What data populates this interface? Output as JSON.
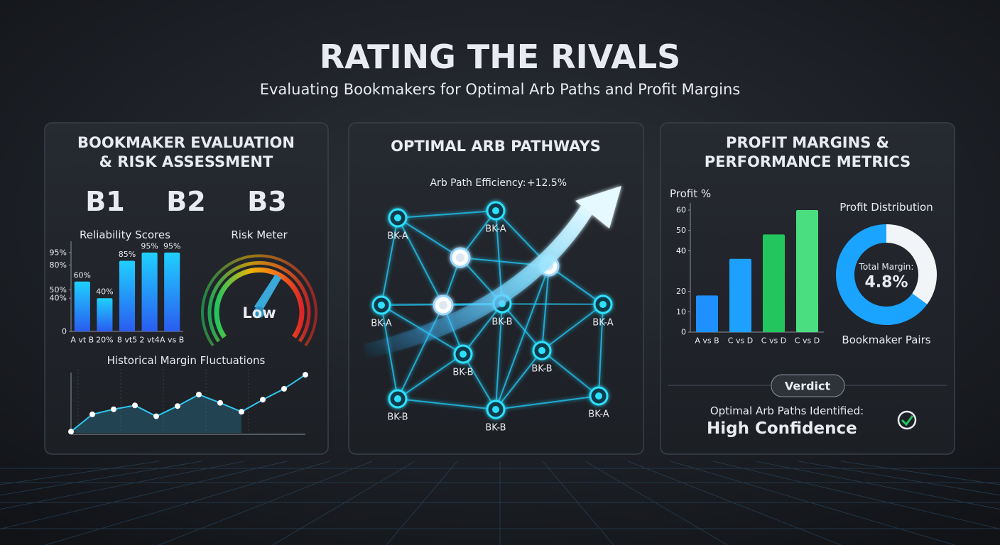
{
  "header": {
    "title": "RATING THE RIVALS",
    "subtitle": "Evaluating Bookmakers for Optimal Arb Paths and Profit Margins"
  },
  "left": {
    "title_lines": [
      "BOOKMAKER EVALUATION",
      "& RISK ASSESSMENT"
    ],
    "logos": [
      "B1",
      "B2",
      "B3"
    ],
    "reliability": {
      "type": "bar",
      "title": "Reliability Scores",
      "categories": [
        "A vt B",
        "20%",
        "8 vt5",
        "2 vt4",
        "A vs B"
      ],
      "values": [
        60,
        40,
        85,
        95,
        95
      ],
      "value_labels": [
        "60%",
        "40%",
        "85%",
        "95%",
        "95%"
      ],
      "ylim": [
        0,
        100
      ],
      "yticks": [
        {
          "value": 95,
          "label": "95%"
        },
        {
          "value": 80,
          "label": "80%"
        },
        {
          "value": 40,
          "label": "40%"
        },
        {
          "value": 50,
          "label": "50%"
        },
        0
      ]
    },
    "risk": {
      "title": "Risk Meter",
      "level": "Low"
    },
    "history": {
      "type": "line",
      "title": "Historical Margin Fluctuations",
      "values": [
        2,
        29,
        37,
        43,
        26,
        42,
        60,
        47,
        33,
        52,
        69,
        91
      ],
      "ylim": [
        0,
        100
      ]
    }
  },
  "middle": {
    "title": "OPTIMAL ARB PATHWAYS",
    "efficiency_label": "Arb Path Efficiency:",
    "efficiency_value": "+12.5%",
    "nodes": [
      "BK-A",
      "BK-A",
      "BK-A",
      "BK-B",
      "BK-A",
      "BK-B",
      "BK-B",
      "BK-B",
      "BK-B",
      "BK-A"
    ]
  },
  "right": {
    "title_lines": [
      "PROFIT MARGINS &",
      "PERFORMANCE METRICS"
    ],
    "profit": {
      "type": "bar",
      "y_label": "Profit %",
      "categories": [
        "A vs B",
        "C vs D",
        "C vs D",
        "C vs D"
      ],
      "values": [
        18,
        36,
        48,
        60
      ],
      "colors": [
        "#1e90ff",
        "#1ea0ff",
        "#22c55e",
        "#4ade80"
      ],
      "ylim": [
        0,
        60
      ],
      "yticks": [
        0,
        10,
        20,
        40,
        40,
        60,
        50
      ]
    },
    "distribution": {
      "type": "pie",
      "title": "Profit Distribution",
      "center_label": "Total Margin:",
      "center_value": "4.8%",
      "caption": "Bookmaker Pairs",
      "values": [
        65,
        35
      ],
      "colors": [
        "#1aa3ff",
        "#f2f5f8"
      ]
    },
    "verdict": {
      "badge": "Verdict",
      "line": "Optimal Arb Paths Identified:",
      "result": "High Confidence"
    }
  }
}
